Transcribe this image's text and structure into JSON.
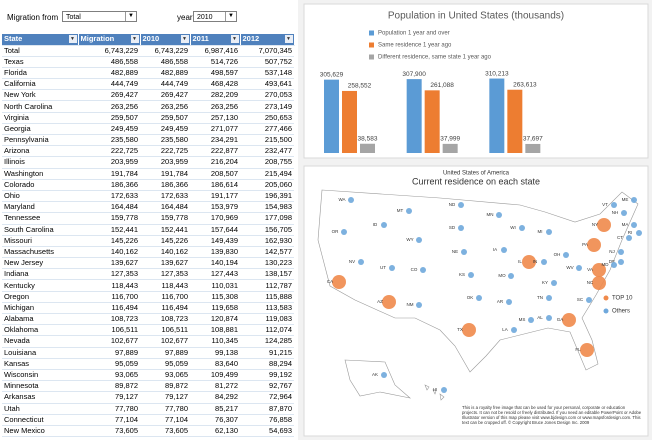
{
  "controls": {
    "migration_from": {
      "label": "Migration from",
      "value": "Total"
    },
    "year": {
      "label": "year",
      "value": "2010"
    }
  },
  "table": {
    "columns": [
      "State",
      "Migration",
      "2010",
      "2011",
      "2012"
    ],
    "rows": [
      [
        "Total",
        "6,743,229",
        "6,743,229",
        "6,987,416",
        "7,070,345"
      ],
      [
        "Texas",
        "486,558",
        "486,558",
        "514,726",
        "507,752"
      ],
      [
        "Florida",
        "482,889",
        "482,889",
        "498,597",
        "537,148"
      ],
      [
        "California",
        "444,749",
        "444,749",
        "468,428",
        "493,641"
      ],
      [
        "New York",
        "269,427",
        "269,427",
        "282,209",
        "270,053"
      ],
      [
        "North Carolina",
        "263,256",
        "263,256",
        "263,256",
        "273,149"
      ],
      [
        "Virginia",
        "259,507",
        "259,507",
        "257,130",
        "250,653"
      ],
      [
        "Georgia",
        "249,459",
        "249,459",
        "271,077",
        "277,466"
      ],
      [
        "Pennsylvania",
        "235,580",
        "235,580",
        "234,291",
        "215,500"
      ],
      [
        "Arizona",
        "222,725",
        "222,725",
        "222,877",
        "232,477"
      ],
      [
        "Illinois",
        "203,959",
        "203,959",
        "216,204",
        "208,755"
      ],
      [
        "Washington",
        "191,784",
        "191,784",
        "208,507",
        "215,494"
      ],
      [
        "Colorado",
        "186,366",
        "186,366",
        "186,614",
        "205,060"
      ],
      [
        "Ohio",
        "172,633",
        "172,633",
        "191,177",
        "196,391"
      ],
      [
        "Maryland",
        "164,484",
        "164,484",
        "153,979",
        "154,983"
      ],
      [
        "Tennessee",
        "159,778",
        "159,778",
        "170,969",
        "177,098"
      ],
      [
        "South Carolina",
        "152,441",
        "152,441",
        "157,644",
        "156,705"
      ],
      [
        "Missouri",
        "145,226",
        "145,226",
        "149,439",
        "162,930"
      ],
      [
        "Massachusetts",
        "140,162",
        "140,162",
        "139,830",
        "142,577"
      ],
      [
        "New Jersey",
        "139,627",
        "139,627",
        "140,194",
        "130,223"
      ],
      [
        "Indiana",
        "127,353",
        "127,353",
        "127,443",
        "138,157"
      ],
      [
        "Kentucky",
        "118,443",
        "118,443",
        "110,031",
        "112,787"
      ],
      [
        "Oregon",
        "116,700",
        "116,700",
        "115,308",
        "115,888"
      ],
      [
        "Michigan",
        "116,494",
        "116,494",
        "119,658",
        "113,583"
      ],
      [
        "Alabama",
        "108,723",
        "108,723",
        "120,874",
        "119,083"
      ],
      [
        "Oklahoma",
        "106,511",
        "106,511",
        "108,881",
        "112,074"
      ],
      [
        "Nevada",
        "102,677",
        "102,677",
        "110,345",
        "124,285"
      ],
      [
        "Louisiana",
        "97,889",
        "97,889",
        "99,138",
        "91,215"
      ],
      [
        "Kansas",
        "95,059",
        "95,059",
        "83,640",
        "88,294"
      ],
      [
        "Wisconsin",
        "93,065",
        "93,065",
        "109,499",
        "99,192"
      ],
      [
        "Minnesota",
        "89,872",
        "89,872",
        "81,272",
        "92,767"
      ],
      [
        "Arkansas",
        "79,127",
        "79,127",
        "84,292",
        "72,964"
      ],
      [
        "Utah",
        "77,780",
        "77,780",
        "85,217",
        "87,870"
      ],
      [
        "Connecticut",
        "77,104",
        "77,104",
        "76,307",
        "76,858"
      ],
      [
        "New Mexico",
        "73,605",
        "73,605",
        "62,130",
        "54,693"
      ]
    ]
  },
  "chart_data": {
    "type": "bar",
    "title": "Population in United States (thousands)",
    "categories": [
      null,
      null,
      null
    ],
    "series": [
      {
        "name": "Population 1 year and over",
        "color": "#5b9bd5",
        "values": [
          305629,
          307900,
          310213
        ],
        "value_labels": [
          "305,629",
          "307,900",
          "310,213"
        ]
      },
      {
        "name": "Same residence 1 year ago",
        "color": "#ed7d31",
        "values": [
          258552,
          261088,
          263613
        ],
        "value_labels": [
          "258,552",
          "261,088",
          "263,613"
        ]
      },
      {
        "name": "Different residence, same state 1 year ago",
        "color": "#a5a5a5",
        "values": [
          38583,
          37999,
          37697
        ],
        "value_labels": [
          "38,583",
          "37,999",
          "37,697"
        ]
      }
    ],
    "ylim": [
      0,
      400000
    ],
    "grid": false
  },
  "map": {
    "title": "United States of America",
    "subtitle": "Current residence on each state",
    "legend": [
      {
        "label": "TOP 10",
        "color": "#f08a4b"
      },
      {
        "label": "Others",
        "color": "#6fa8dc"
      }
    ],
    "states": [
      {
        "label": "WA",
        "top10": false
      },
      {
        "label": "OR",
        "top10": false
      },
      {
        "label": "CA",
        "top10": true
      },
      {
        "label": "NV",
        "top10": false
      },
      {
        "label": "ID",
        "top10": false
      },
      {
        "label": "MT",
        "top10": false
      },
      {
        "label": "WY",
        "top10": false
      },
      {
        "label": "UT",
        "top10": false
      },
      {
        "label": "AZ",
        "top10": true
      },
      {
        "label": "CO",
        "top10": false
      },
      {
        "label": "NM",
        "top10": false
      },
      {
        "label": "ND",
        "top10": false
      },
      {
        "label": "SD",
        "top10": false
      },
      {
        "label": "NE",
        "top10": false
      },
      {
        "label": "KS",
        "top10": false
      },
      {
        "label": "OK",
        "top10": false
      },
      {
        "label": "TX",
        "top10": true
      },
      {
        "label": "MN",
        "top10": false
      },
      {
        "label": "IA",
        "top10": false
      },
      {
        "label": "MO",
        "top10": false
      },
      {
        "label": "AR",
        "top10": false
      },
      {
        "label": "LA",
        "top10": false
      },
      {
        "label": "WI",
        "top10": false
      },
      {
        "label": "IL",
        "top10": true
      },
      {
        "label": "MI",
        "top10": false
      },
      {
        "label": "IN",
        "top10": false
      },
      {
        "label": "OH",
        "top10": false
      },
      {
        "label": "KY",
        "top10": false
      },
      {
        "label": "TN",
        "top10": false
      },
      {
        "label": "MS",
        "top10": false
      },
      {
        "label": "AL",
        "top10": false
      },
      {
        "label": "GA",
        "top10": true
      },
      {
        "label": "FL",
        "top10": true
      },
      {
        "label": "SC",
        "top10": false
      },
      {
        "label": "NC",
        "top10": true
      },
      {
        "label": "VA",
        "top10": true
      },
      {
        "label": "WV",
        "top10": false
      },
      {
        "label": "PA",
        "top10": true
      },
      {
        "label": "NY",
        "top10": true
      },
      {
        "label": "ME",
        "top10": false
      },
      {
        "label": "VT",
        "top10": false
      },
      {
        "label": "NH",
        "top10": false
      },
      {
        "label": "MA",
        "top10": false
      },
      {
        "label": "CT",
        "top10": false
      },
      {
        "label": "RI",
        "top10": false
      },
      {
        "label": "NJ",
        "top10": false
      },
      {
        "label": "DE",
        "top10": false
      },
      {
        "label": "MD",
        "top10": false
      },
      {
        "label": "AK",
        "top10": false
      },
      {
        "label": "HI",
        "top10": false
      }
    ],
    "notice": "This is a royalty free image that can be used for your personal, corporate or education projects. It can not be resold or freely distributed. If you need an editable PowerPoint or Adobe Illustrator version of this map please visit www.bjdesign.com or www.mapsfordesign.com. This text can be cropped off. © Copyright Bruce Jones Design Inc. 2009"
  }
}
